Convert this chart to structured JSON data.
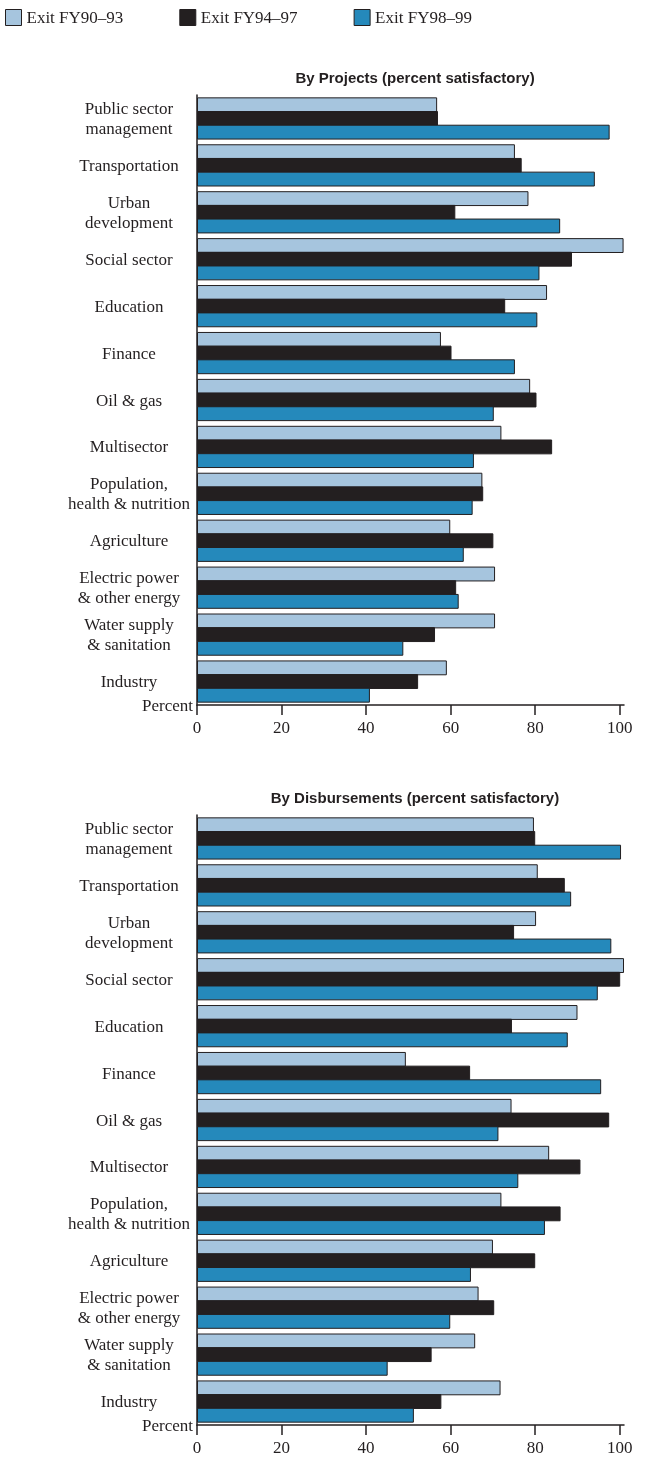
{
  "chart_data": [
    {
      "type": "bar",
      "orientation": "horizontal",
      "title": "By Projects (percent satisfactory)",
      "xlabel": "Percent",
      "categories": [
        "Public sector\nmanagement",
        "Transportation",
        "Urban\ndevelopment",
        "Social sector",
        "Education",
        "Finance",
        "Oil & gas",
        "Multisector",
        "Population,\nhealth & nutrition",
        "Agriculture",
        "Electric power\n& other energy",
        "Water supply\n& sanitation",
        "Industry"
      ],
      "series": [
        {
          "name": "Exit FY90–93",
          "color": "#a6c5de",
          "values": [
            56.8,
            75.2,
            78.4,
            100.9,
            82.8,
            57.7,
            78.8,
            72.0,
            67.5,
            59.9,
            70.5,
            70.5,
            59.1
          ]
        },
        {
          "name": "Exit FY94–97",
          "color": "#231f20",
          "values": [
            57.0,
            76.8,
            61.1,
            88.7,
            72.9,
            60.2,
            80.3,
            84.0,
            67.7,
            70.1,
            61.3,
            56.3,
            52.3
          ]
        },
        {
          "name": "Exit FY98–99",
          "color": "#2589bb",
          "values": [
            97.6,
            94.1,
            85.9,
            81.0,
            80.5,
            75.2,
            70.2,
            65.5,
            65.2,
            63.1,
            61.9,
            48.8,
            40.9
          ]
        }
      ],
      "xlim": [
        0,
        101
      ],
      "xticks": [
        0,
        20,
        40,
        60,
        80,
        100
      ],
      "grid": false,
      "legend": "top left"
    },
    {
      "type": "bar",
      "orientation": "horizontal",
      "title": "By Disbursements (percent satisfactory)",
      "xlabel": "Percent",
      "categories": [
        "Public sector\nmanagement",
        "Transportation",
        "Urban\ndevelopment",
        "Social sector",
        "Education",
        "Finance",
        "Oil & gas",
        "Multisector",
        "Population,\nhealth & nutrition",
        "Agriculture",
        "Electric power\n& other energy",
        "Water supply\n& sanitation",
        "Industry"
      ],
      "series": [
        {
          "color": "#a6c5de",
          "values": [
            79.7,
            80.6,
            80.2,
            101.0,
            90.0,
            49.4,
            74.4,
            83.3,
            72.0,
            70.0,
            66.6,
            65.8,
            71.8
          ]
        },
        {
          "color": "#231f20",
          "values": [
            80.0,
            87.0,
            75.0,
            100.1,
            74.5,
            64.6,
            97.5,
            90.7,
            86.0,
            80.0,
            70.3,
            55.5,
            57.8
          ]
        },
        {
          "color": "#2589bb",
          "values": [
            100.3,
            88.5,
            98.0,
            94.8,
            87.7,
            95.6,
            71.3,
            76.0,
            82.3,
            64.8,
            59.9,
            45.1,
            51.3
          ]
        }
      ],
      "xlim": [
        0,
        101
      ],
      "xticks": [
        0,
        20,
        40,
        60,
        80,
        100
      ],
      "grid": false,
      "legend": false
    }
  ]
}
